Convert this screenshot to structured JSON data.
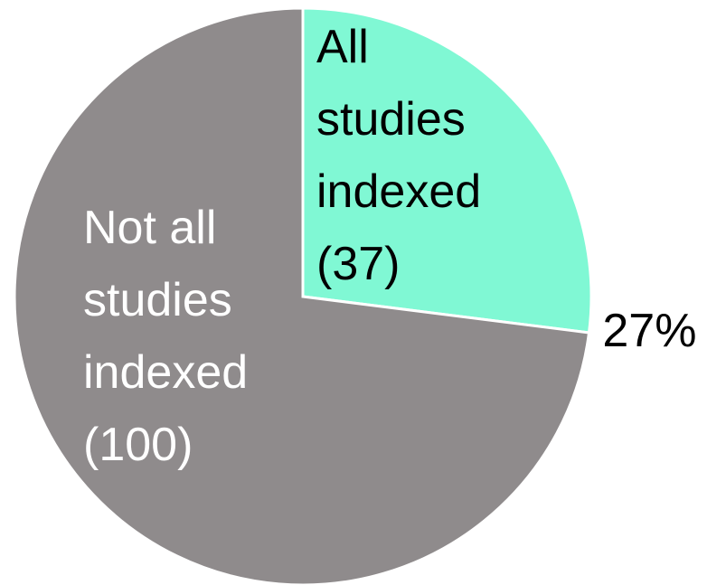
{
  "chart_data": {
    "type": "pie",
    "categories": [
      "All\nstudies\nindexed\n(37)",
      "Not all\nstudies\nindexed\n(100)"
    ],
    "values": [
      27,
      73
    ],
    "value_labels": [
      "27%",
      null
    ],
    "colors": [
      "#80f8d4",
      "#8f8b8c"
    ],
    "label_colors": [
      "#000000",
      "#ffffff"
    ]
  }
}
